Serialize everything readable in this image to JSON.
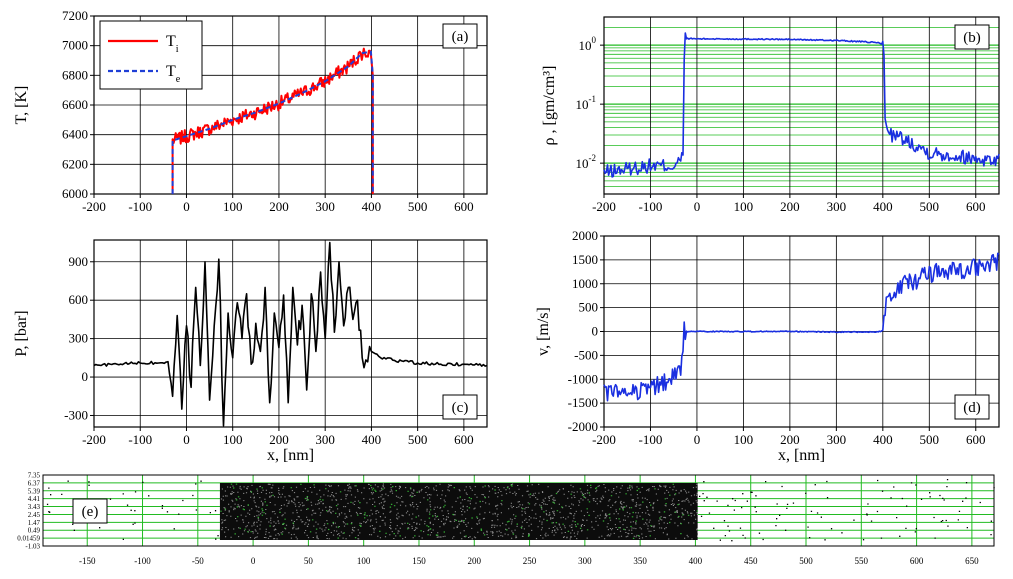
{
  "chart_data": [
    {
      "id": "a",
      "type": "line",
      "panel_label": "(a)",
      "ylabel": "T, [K]",
      "xlim": [
        -200,
        650
      ],
      "ylim": [
        6000,
        7200
      ],
      "xticks": [
        -200,
        -100,
        0,
        100,
        200,
        300,
        400,
        500,
        600
      ],
      "yticks": [
        6000,
        6200,
        6400,
        6600,
        6800,
        7000,
        7200
      ],
      "grid": true,
      "legend": "top-left",
      "legend_entries": [
        {
          "main": "T",
          "sub": "i"
        },
        {
          "main": "T",
          "sub": "e"
        }
      ],
      "series": [
        {
          "color": "#ff0000",
          "style": "solid",
          "noise": 45,
          "x": [
            -30,
            -30,
            0,
            50,
            100,
            150,
            200,
            250,
            300,
            350,
            380,
            400,
            403,
            403
          ],
          "y": [
            6000,
            6360,
            6390,
            6440,
            6500,
            6550,
            6610,
            6680,
            6760,
            6860,
            6950,
            6960,
            6800,
            6000
          ]
        },
        {
          "color": "#1f3fd6",
          "style": "dashed",
          "noise": 0,
          "x": [
            -30,
            -30,
            0,
            50,
            100,
            150,
            200,
            250,
            300,
            350,
            380,
            400,
            403,
            403
          ],
          "y": [
            6000,
            6360,
            6390,
            6440,
            6500,
            6550,
            6610,
            6680,
            6760,
            6860,
            6950,
            6960,
            6800,
            6000
          ]
        }
      ]
    },
    {
      "id": "b",
      "type": "line",
      "panel_label": "(b)",
      "ylabel": "ρ , [gm/cm³]",
      "yscale": "log",
      "xlim": [
        -200,
        650
      ],
      "ylim": [
        0.003,
        3
      ],
      "xticks": [
        -200,
        -100,
        0,
        100,
        200,
        300,
        400,
        500,
        600
      ],
      "ytick_labels": [
        {
          "value": 1,
          "base": "10",
          "exp": "0"
        },
        {
          "value": 0.1,
          "base": "10",
          "exp": "-1"
        },
        {
          "value": 0.01,
          "base": "10",
          "exp": "-2"
        }
      ],
      "grid": true,
      "grid_color": "#22bb22",
      "series": [
        {
          "color": "#1a2fe0",
          "style": "solid",
          "noise_log": 0.12,
          "x": [
            -200,
            -150,
            -100,
            -50,
            -35,
            -30,
            -25,
            0,
            100,
            200,
            300,
            350,
            390,
            400,
            405,
            420,
            500,
            600,
            650
          ],
          "y": [
            0.007,
            0.008,
            0.009,
            0.009,
            0.011,
            0.013,
            1.3,
            1.28,
            1.27,
            1.25,
            1.2,
            1.15,
            1.1,
            1.05,
            0.05,
            0.03,
            0.015,
            0.012,
            0.011
          ]
        }
      ]
    },
    {
      "id": "c",
      "type": "line",
      "panel_label": "(c)",
      "xlabel": "x, [nm]",
      "ylabel": "P, [bar]",
      "xlim": [
        -200,
        650
      ],
      "ylim": [
        -390,
        1070
      ],
      "xticks": [
        -200,
        -100,
        0,
        100,
        200,
        300,
        400,
        500,
        600
      ],
      "yticks": [
        -300,
        0,
        300,
        600,
        900
      ],
      "grid": true,
      "series": [
        {
          "color": "#000000",
          "style": "solid",
          "x": [
            -200,
            -150,
            -100,
            -60,
            -40,
            -30,
            -20,
            -10,
            0,
            10,
            20,
            30,
            40,
            50,
            60,
            70,
            80,
            90,
            100,
            110,
            120,
            130,
            140,
            150,
            160,
            170,
            180,
            190,
            200,
            210,
            220,
            230,
            240,
            250,
            260,
            270,
            280,
            290,
            300,
            310,
            320,
            330,
            340,
            350,
            360,
            370,
            380,
            400,
            420,
            450,
            500,
            550,
            600,
            650
          ],
          "y": [
            90,
            100,
            110,
            110,
            120,
            -150,
            480,
            -250,
            400,
            -80,
            700,
            90,
            900,
            -180,
            400,
            920,
            -380,
            500,
            150,
            580,
            300,
            650,
            100,
            420,
            200,
            700,
            -200,
            500,
            230,
            640,
            -200,
            700,
            250,
            560,
            -100,
            650,
            200,
            820,
            300,
            1050,
            350,
            900,
            400,
            700,
            450,
            600,
            150,
            200,
            150,
            130,
            110,
            100,
            100,
            90
          ]
        }
      ]
    },
    {
      "id": "d",
      "type": "line",
      "panel_label": "(d)",
      "xlabel": "x, [nm]",
      "ylabel": "v, [m/s]",
      "xlim": [
        -200,
        650
      ],
      "ylim": [
        -2000,
        2000
      ],
      "xticks": [
        -200,
        -100,
        0,
        100,
        200,
        300,
        400,
        500,
        600
      ],
      "yticks": [
        -2000,
        -1500,
        -1000,
        -500,
        0,
        500,
        1000,
        1500,
        2000
      ],
      "grid": true,
      "series": [
        {
          "color": "#1a2fe0",
          "style": "solid",
          "noise": 200,
          "x": [
            -200,
            -150,
            -100,
            -60,
            -40,
            -32,
            -28,
            0,
            100,
            200,
            300,
            390,
            400,
            410,
            450,
            500,
            600,
            650
          ],
          "y": [
            -1300,
            -1250,
            -1200,
            -1050,
            -800,
            -700,
            0,
            0,
            0,
            0,
            -10,
            -10,
            20,
            800,
            1000,
            1200,
            1350,
            1450
          ]
        }
      ]
    },
    {
      "id": "e",
      "type": "scatter",
      "panel_label": "(e)",
      "xlim": [
        -190,
        670
      ],
      "xticks": [
        -150,
        -100,
        -50,
        0,
        50,
        100,
        150,
        200,
        250,
        300,
        350,
        400,
        450,
        500,
        550,
        600,
        650
      ],
      "ytick_labels": [
        "7.35",
        "6.37",
        "5.39",
        "4.41",
        "3.43",
        "2.45",
        "1.47",
        "0.49",
        "0.01459",
        "-1.03"
      ],
      "grid_color": "#22bb22",
      "dense_region": [
        -30,
        402
      ]
    }
  ]
}
